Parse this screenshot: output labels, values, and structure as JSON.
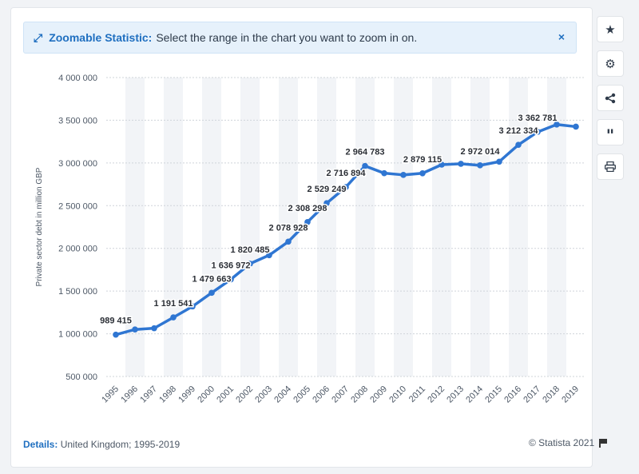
{
  "banner": {
    "title": "Zoomable Statistic:",
    "text": "Select the range in the chart you want to zoom in on.",
    "close_label": "×"
  },
  "footer": {
    "details_label": "Details:",
    "details_text": "United Kingdom; 1995-2019",
    "copyright": "© Statista 2021"
  },
  "toolbar": {
    "icons": [
      "star-icon",
      "gear-icon",
      "share-icon",
      "quote-icon",
      "print-icon"
    ]
  },
  "colors": {
    "line": "#2f76d2",
    "accent": "#1f6fc0",
    "band": "#f2f4f7"
  },
  "chart_data": {
    "type": "line",
    "title": "",
    "xlabel": "",
    "ylabel": "Private sector debt in million GBP",
    "ylim": [
      500000,
      4000000
    ],
    "yticks": [
      500000,
      1000000,
      1500000,
      2000000,
      2500000,
      3000000,
      3500000,
      4000000
    ],
    "ytick_labels": [
      "500 000",
      "1 000 000",
      "1 500 000",
      "2 000 000",
      "2 500 000",
      "3 000 000",
      "3 500 000",
      "4 000 000"
    ],
    "grid": true,
    "categories": [
      "1995",
      "1996",
      "1997",
      "1998",
      "1999",
      "2000",
      "2001",
      "2002",
      "2003",
      "2004",
      "2005",
      "2006",
      "2007",
      "2008",
      "2009",
      "2010",
      "2011",
      "2012",
      "2013",
      "2014",
      "2015",
      "2016",
      "2017",
      "2018",
      "2019"
    ],
    "series": [
      {
        "values": [
          989415,
          1050000,
          1065000,
          1191541,
          1320000,
          1479663,
          1636972,
          1820485,
          1920000,
          2078928,
          2308298,
          2529249,
          2716894,
          2964783,
          2880000,
          2860000,
          2879115,
          2980000,
          2990000,
          2972014,
          3015000,
          3212334,
          3362781,
          3450000,
          3425000
        ],
        "data_labels": [
          "989 415",
          "",
          "",
          "1 191 541",
          "",
          "1 479 663",
          "1 636 972",
          "1 820 485",
          "",
          "2 078 928",
          "2 308 298",
          "2 529 249",
          "2 716 894",
          "2 964 783",
          "",
          "",
          "2 879 115",
          "",
          "",
          "2 972 014",
          "",
          "3 212 334",
          "3 362 781",
          "",
          ""
        ]
      }
    ]
  }
}
